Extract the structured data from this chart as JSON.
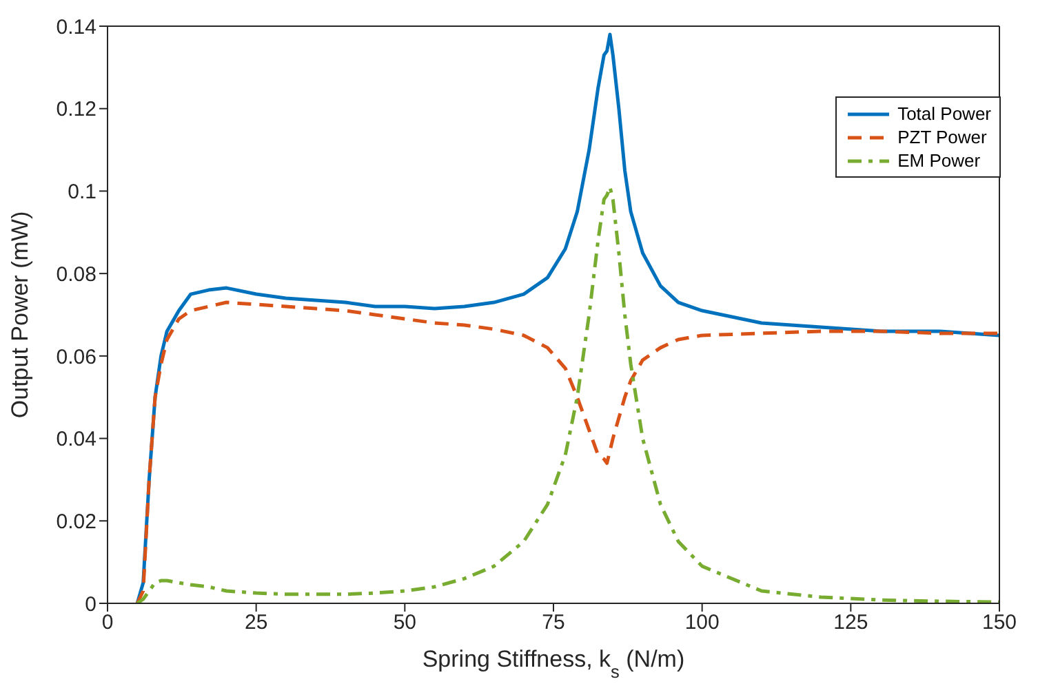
{
  "chart_data": {
    "type": "line",
    "xlabel": "Spring Stiffness, k$_{s}$ (N/m)",
    "ylabel": "Output Power (mW)",
    "x": [
      5,
      6,
      7,
      8,
      9,
      10,
      12,
      14,
      17,
      20,
      25,
      30,
      35,
      40,
      45,
      50,
      55,
      60,
      65,
      70,
      74,
      77,
      79,
      81,
      82.5,
      83.5,
      84,
      84.5,
      85,
      86,
      87,
      88,
      90,
      93,
      96,
      100,
      110,
      120,
      130,
      140,
      150
    ],
    "series": [
      {
        "name": "Total Power",
        "color": "#0072bd",
        "line_style": "solid",
        "values": [
          0,
          0.005,
          0.03,
          0.05,
          0.06,
          0.066,
          0.071,
          0.075,
          0.076,
          0.0765,
          0.075,
          0.074,
          0.0735,
          0.073,
          0.072,
          0.072,
          0.0715,
          0.072,
          0.073,
          0.075,
          0.079,
          0.086,
          0.095,
          0.11,
          0.125,
          0.133,
          0.134,
          0.138,
          0.133,
          0.12,
          0.105,
          0.095,
          0.085,
          0.077,
          0.073,
          0.071,
          0.068,
          0.067,
          0.066,
          0.066,
          0.065
        ]
      },
      {
        "name": "PZT Power",
        "color": "#d95319",
        "line_style": "dashed",
        "values": [
          0,
          0.003,
          0.03,
          0.05,
          0.058,
          0.064,
          0.069,
          0.071,
          0.072,
          0.073,
          0.0725,
          0.072,
          0.0715,
          0.071,
          0.07,
          0.069,
          0.068,
          0.0675,
          0.0665,
          0.065,
          0.062,
          0.057,
          0.05,
          0.042,
          0.036,
          0.035,
          0.034,
          0.037,
          0.04,
          0.045,
          0.05,
          0.054,
          0.059,
          0.062,
          0.064,
          0.065,
          0.0655,
          0.066,
          0.066,
          0.0655,
          0.0655
        ]
      },
      {
        "name": "EM Power",
        "color": "#77ac30",
        "line_style": "dashdot",
        "values": [
          0,
          0.001,
          0.003,
          0.005,
          0.0055,
          0.0055,
          0.005,
          0.0045,
          0.004,
          0.003,
          0.0025,
          0.0022,
          0.0022,
          0.0022,
          0.0025,
          0.003,
          0.004,
          0.006,
          0.009,
          0.015,
          0.024,
          0.036,
          0.05,
          0.07,
          0.088,
          0.098,
          0.099,
          0.101,
          0.098,
          0.085,
          0.07,
          0.058,
          0.04,
          0.024,
          0.015,
          0.009,
          0.003,
          0.0015,
          0.0008,
          0.0005,
          0.0003
        ]
      }
    ],
    "xlim": [
      0,
      150
    ],
    "xticks": [
      0,
      25,
      50,
      75,
      100,
      125,
      150
    ],
    "ylim": [
      0,
      0.14
    ],
    "yticks": [
      0,
      0.02,
      0.04,
      0.06,
      0.08,
      0.1,
      0.12,
      0.14
    ],
    "grid": false,
    "legend": "top right"
  }
}
